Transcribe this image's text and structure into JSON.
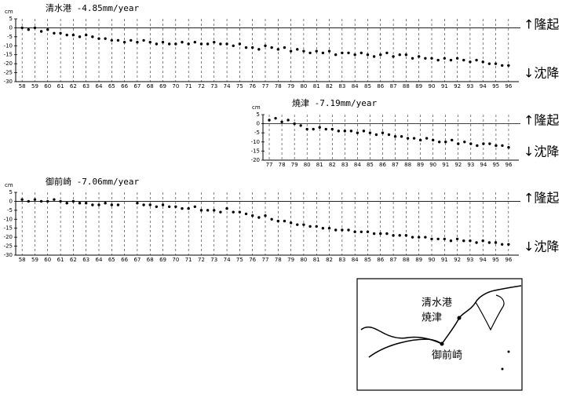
{
  "chart_data": [
    {
      "type": "scatter",
      "title": "清水港  -4.85mm/year",
      "ylabel": "cm",
      "color": "#000000",
      "grid": true,
      "annotations": [
        "↑隆起",
        "↓沈降"
      ],
      "xlim": [
        57.5,
        96.5
      ],
      "ylim": [
        -30,
        5
      ],
      "xticks": [
        58,
        59,
        60,
        61,
        62,
        63,
        64,
        65,
        66,
        67,
        68,
        69,
        70,
        71,
        72,
        73,
        74,
        75,
        76,
        77,
        78,
        79,
        80,
        81,
        82,
        83,
        84,
        85,
        86,
        87,
        88,
        89,
        90,
        91,
        92,
        93,
        94,
        95,
        96
      ],
      "yticks": [
        5,
        0,
        -5,
        -10,
        -15,
        -20,
        -25,
        -30
      ],
      "x": [
        58,
        58.5,
        59,
        59.5,
        60,
        60.5,
        61,
        61.5,
        62,
        62.5,
        63,
        63.5,
        64,
        64.5,
        65,
        65.5,
        66,
        66.5,
        67,
        67.5,
        68,
        68.5,
        69,
        69.5,
        70,
        70.5,
        71,
        71.5,
        72,
        72.5,
        73,
        73.5,
        74,
        74.5,
        75,
        75.5,
        76,
        76.5,
        77,
        77.5,
        78,
        78.5,
        79,
        79.5,
        80,
        80.5,
        81,
        81.5,
        82,
        82.5,
        83,
        83.5,
        84,
        84.5,
        85,
        85.5,
        86,
        86.5,
        87,
        87.5,
        88,
        88.5,
        89,
        89.5,
        90,
        90.5,
        91,
        91.5,
        92,
        92.5,
        93,
        93.5,
        94,
        94.5,
        95,
        95.5,
        96
      ],
      "values": [
        0,
        -1,
        0,
        -2,
        -1,
        -3,
        -3,
        -4,
        -4,
        -5,
        -4,
        -5,
        -6,
        -6,
        -7,
        -7,
        -8,
        -7,
        -8,
        -7,
        -8,
        -9,
        -8,
        -9,
        -9,
        -8,
        -9,
        -8,
        -9,
        -9,
        -8,
        -9,
        -9,
        -10,
        -9,
        -11,
        -11,
        -12,
        -10,
        -11,
        -12,
        -11,
        -13,
        -12,
        -13,
        -14,
        -13,
        -14,
        -13,
        -15,
        -14,
        -14,
        -15,
        -14,
        -15,
        -16,
        -15,
        -14,
        -16,
        -15,
        -15,
        -17,
        -16,
        -17,
        -17,
        -18,
        -17,
        -18,
        -17,
        -18,
        -19,
        -18,
        -19,
        -20,
        -20,
        -21,
        -21
      ]
    },
    {
      "type": "scatter",
      "title": "焼津  -7.19mm/year",
      "ylabel": "cm",
      "color": "#000000",
      "grid": true,
      "annotations": [
        "↑隆起",
        "↓沈降"
      ],
      "xlim": [
        76.5,
        96.5
      ],
      "ylim": [
        -20,
        5
      ],
      "xticks": [
        77,
        78,
        79,
        80,
        81,
        82,
        83,
        84,
        85,
        86,
        87,
        88,
        89,
        90,
        91,
        92,
        93,
        94,
        95,
        96
      ],
      "yticks": [
        5,
        0,
        -5,
        -10,
        -15,
        -20
      ],
      "x": [
        77,
        77.5,
        78,
        78.5,
        79,
        79.5,
        80,
        80.5,
        81,
        81.5,
        82,
        82.5,
        83,
        83.5,
        84,
        84.5,
        85,
        85.5,
        86,
        86.5,
        87,
        87.5,
        88,
        88.5,
        89,
        89.5,
        90,
        90.5,
        91,
        91.5,
        92,
        92.5,
        93,
        93.5,
        94,
        94.5,
        95,
        95.5,
        96
      ],
      "values": [
        2,
        3,
        1,
        2,
        0,
        -1,
        -3,
        -3,
        -2,
        -3,
        -3,
        -4,
        -4,
        -4,
        -5,
        -4,
        -5,
        -6,
        -5,
        -6,
        -7,
        -7,
        -8,
        -8,
        -9,
        -8,
        -9,
        -10,
        -10,
        -9,
        -11,
        -10,
        -11,
        -12,
        -11,
        -11,
        -12,
        -12,
        -13
      ]
    },
    {
      "type": "scatter",
      "title": "御前崎  -7.06mm/year",
      "ylabel": "cm",
      "color": "#000000",
      "grid": true,
      "annotations": [
        "↑隆起",
        "↓沈降"
      ],
      "xlim": [
        57.5,
        96.5
      ],
      "ylim": [
        -30,
        5
      ],
      "xticks": [
        58,
        59,
        60,
        61,
        62,
        63,
        64,
        65,
        66,
        67,
        68,
        69,
        70,
        71,
        72,
        73,
        74,
        75,
        76,
        77,
        78,
        79,
        80,
        81,
        82,
        83,
        84,
        85,
        86,
        87,
        88,
        89,
        90,
        91,
        92,
        93,
        94,
        95,
        96
      ],
      "yticks": [
        5,
        0,
        -5,
        -10,
        -15,
        -20,
        -25,
        -30
      ],
      "x": [
        58,
        58.5,
        59,
        59.5,
        60,
        60.5,
        61,
        61.5,
        62,
        62.5,
        63,
        63.5,
        64,
        64.5,
        65,
        65.5,
        66,
        66.5,
        67,
        67.5,
        68,
        68.5,
        69,
        69.5,
        70,
        70.5,
        71,
        71.5,
        72,
        72.5,
        73,
        73.5,
        74,
        74.5,
        75,
        75.5,
        76,
        76.5,
        77,
        77.5,
        78,
        78.5,
        79,
        79.5,
        80,
        80.5,
        81,
        81.5,
        82,
        82.5,
        83,
        83.5,
        84,
        84.5,
        85,
        85.5,
        86,
        86.5,
        87,
        87.5,
        88,
        88.5,
        89,
        89.5,
        90,
        90.5,
        91,
        91.5,
        92,
        92.5,
        93,
        93.5,
        94,
        94.5,
        95,
        95.5,
        96
      ],
      "values": [
        1,
        0,
        1,
        0,
        0,
        1,
        0,
        -1,
        0,
        -1,
        -1,
        -2,
        -2,
        -1,
        -2,
        -2,
        null,
        null,
        -1,
        -2,
        -2,
        -3,
        -2,
        -3,
        -3,
        -4,
        -4,
        -3,
        -5,
        -5,
        -5,
        -6,
        -4,
        -6,
        -6,
        -7,
        -8,
        -9,
        -8,
        -10,
        -11,
        -11,
        -12,
        -13,
        -13,
        -14,
        -14,
        -15,
        -15,
        -16,
        -16,
        -16,
        -17,
        -17,
        -17,
        -18,
        -18,
        -18,
        -19,
        -19,
        -19,
        -20,
        -20,
        -20,
        -21,
        -21,
        -21,
        -22,
        -21,
        -22,
        -22,
        -23,
        -22,
        -23,
        -23,
        -24,
        -24
      ]
    }
  ],
  "map": {
    "labels": [
      "清水港",
      "焼津",
      "御前崎"
    ]
  }
}
